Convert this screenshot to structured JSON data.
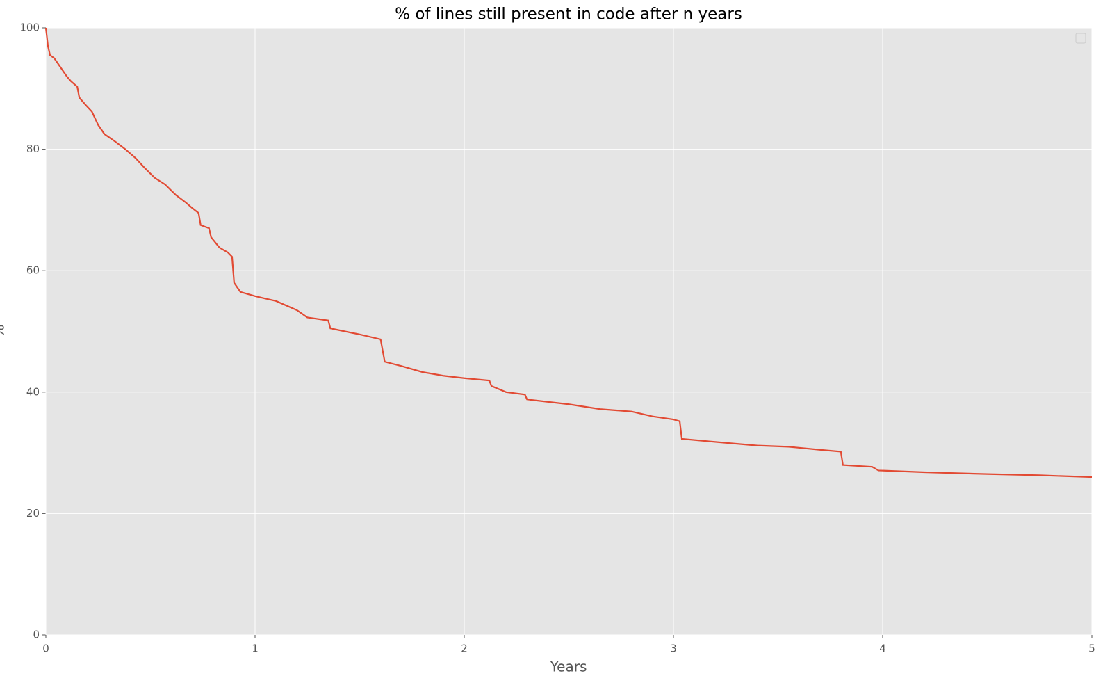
{
  "chart_data": {
    "type": "line",
    "title": "% of lines still present in code after n years",
    "xlabel": "Years",
    "ylabel": "%",
    "x": [
      0,
      0.01,
      0.02,
      0.04,
      0.06,
      0.08,
      0.1,
      0.12,
      0.15,
      0.16,
      0.19,
      0.22,
      0.25,
      0.28,
      0.33,
      0.38,
      0.43,
      0.47,
      0.52,
      0.57,
      0.62,
      0.67,
      0.7,
      0.73,
      0.74,
      0.78,
      0.79,
      0.83,
      0.87,
      0.89,
      0.9,
      0.93,
      1.0,
      1.1,
      1.2,
      1.25,
      1.35,
      1.36,
      1.5,
      1.6,
      1.62,
      1.7,
      1.8,
      1.9,
      2.0,
      2.12,
      2.13,
      2.2,
      2.29,
      2.3,
      2.5,
      2.65,
      2.8,
      2.9,
      3.0,
      3.03,
      3.04,
      3.2,
      3.4,
      3.55,
      3.7,
      3.8,
      3.81,
      3.95,
      3.98,
      4.2,
      4.5,
      4.75,
      5.0
    ],
    "values": [
      100,
      97,
      95.5,
      95,
      94,
      93,
      92,
      91.2,
      90.3,
      88.5,
      87.3,
      86.2,
      84,
      82.5,
      81.3,
      80,
      78.5,
      77,
      75.3,
      74.2,
      72.5,
      71.2,
      70.3,
      69.5,
      67.5,
      67,
      65.5,
      63.8,
      63,
      62.3,
      58,
      56.5,
      55.8,
      55,
      53.5,
      52.3,
      51.8,
      50.5,
      49.5,
      48.7,
      45,
      44.3,
      43.3,
      42.7,
      42.3,
      41.9,
      41,
      40,
      39.6,
      38.8,
      38,
      37.2,
      36.8,
      36,
      35.5,
      35.2,
      32.3,
      31.8,
      31.2,
      31,
      30.5,
      30.2,
      28,
      27.7,
      27.1,
      26.8,
      26.5,
      26.3,
      26
    ],
    "color": "#e24a33",
    "xlim": [
      0,
      5
    ],
    "xticks": [
      0,
      1,
      2,
      3,
      4,
      5
    ],
    "ylim": [
      0,
      100
    ],
    "yticks": [
      0,
      20,
      40,
      60,
      80,
      100
    ],
    "grid": true
  }
}
